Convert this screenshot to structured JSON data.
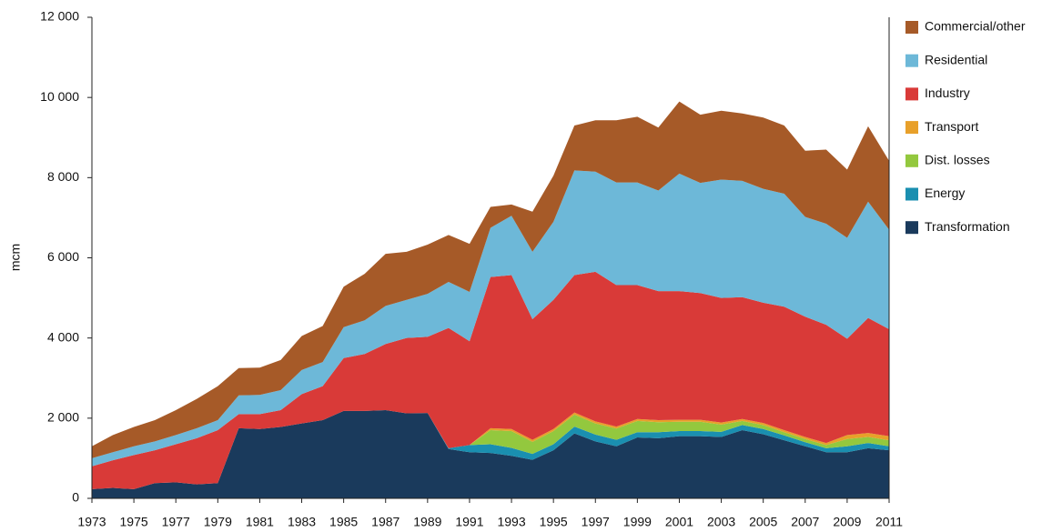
{
  "chart_data": {
    "type": "stacked-area",
    "y_label": "mcm",
    "x": [
      1973,
      1974,
      1975,
      1976,
      1977,
      1978,
      1979,
      1980,
      1981,
      1982,
      1983,
      1984,
      1985,
      1986,
      1987,
      1988,
      1989,
      1990,
      1991,
      1992,
      1993,
      1994,
      1995,
      1996,
      1997,
      1998,
      1999,
      2000,
      2001,
      2002,
      2003,
      2004,
      2005,
      2006,
      2007,
      2008,
      2009,
      2010,
      2011
    ],
    "xlim": [
      1973,
      2011
    ],
    "xticks": [
      1973,
      1975,
      1977,
      1979,
      1981,
      1983,
      1985,
      1987,
      1989,
      1991,
      1993,
      1995,
      1997,
      1999,
      2001,
      2003,
      2005,
      2007,
      2009,
      2011
    ],
    "ylim": [
      0,
      12000
    ],
    "yticks": [
      0,
      {
        "value": 2000,
        "label": "2 000"
      },
      {
        "value": 4000,
        "label": "4 000"
      },
      {
        "value": 6000,
        "label": "6 000"
      },
      {
        "value": 8000,
        "label": "8 000"
      },
      {
        "value": 10000,
        "label": "10 000"
      },
      {
        "value": 12000,
        "label": "12 000"
      }
    ],
    "series": [
      {
        "name": "Commercial/other",
        "color": "#a65a28",
        "values": [
          300,
          430,
          480,
          530,
          620,
          730,
          850,
          680,
          680,
          750,
          850,
          900,
          1010,
          1160,
          1300,
          1200,
          1230,
          1170,
          1200,
          520,
          280,
          1000,
          1150,
          1120,
          1280,
          1550,
          1640,
          1570,
          1800,
          1700,
          1720,
          1680,
          1780,
          1700,
          1650,
          1850,
          1700,
          1880,
          1720
        ]
      },
      {
        "name": "Residential",
        "color": "#6db8d8",
        "values": [
          200,
          200,
          220,
          220,
          230,
          250,
          250,
          470,
          480,
          500,
          600,
          600,
          770,
          840,
          950,
          950,
          1070,
          1150,
          1230,
          1230,
          1480,
          1680,
          1950,
          2610,
          2500,
          2560,
          2560,
          2510,
          2930,
          2750,
          2950,
          2900,
          2840,
          2820,
          2490,
          2520,
          2520,
          2900,
          2480
        ]
      },
      {
        "name": "Industry",
        "color": "#d93a38",
        "values": [
          570,
          690,
          850,
          820,
          950,
          1150,
          1320,
          350,
          370,
          420,
          730,
          850,
          1320,
          1420,
          1650,
          1880,
          1900,
          3000,
          2590,
          3770,
          3840,
          3010,
          3220,
          3430,
          3730,
          3530,
          3340,
          3220,
          3210,
          3160,
          3110,
          3040,
          3000,
          3080,
          3000,
          2950,
          2400,
          2870,
          2670
        ]
      },
      {
        "name": "Transport",
        "color": "#e8a02a",
        "values": [
          0,
          0,
          0,
          0,
          0,
          0,
          0,
          0,
          0,
          0,
          0,
          0,
          0,
          0,
          0,
          0,
          0,
          0,
          0,
          50,
          50,
          50,
          50,
          50,
          50,
          50,
          50,
          50,
          50,
          50,
          50,
          50,
          50,
          50,
          50,
          50,
          100,
          100,
          100
        ]
      },
      {
        "name": "Dist. losses",
        "color": "#93c83e",
        "values": [
          0,
          0,
          0,
          0,
          0,
          0,
          0,
          0,
          0,
          0,
          0,
          0,
          0,
          0,
          0,
          0,
          0,
          0,
          0,
          350,
          420,
          300,
          330,
          300,
          280,
          280,
          280,
          250,
          230,
          230,
          180,
          100,
          100,
          80,
          80,
          80,
          180,
          150,
          150
        ]
      },
      {
        "name": "Energy",
        "color": "#1a8fb0",
        "values": [
          0,
          0,
          0,
          0,
          0,
          0,
          0,
          0,
          0,
          0,
          0,
          0,
          0,
          0,
          0,
          0,
          0,
          20,
          180,
          220,
          200,
          150,
          150,
          170,
          170,
          160,
          130,
          150,
          130,
          130,
          130,
          130,
          130,
          120,
          100,
          100,
          150,
          130,
          100
        ]
      },
      {
        "name": "Transformation",
        "color": "#1a3a5c",
        "values": [
          230,
          260,
          230,
          380,
          400,
          350,
          380,
          1750,
          1730,
          1780,
          1870,
          1950,
          2180,
          2180,
          2200,
          2120,
          2130,
          1230,
          1150,
          1130,
          1060,
          960,
          1200,
          1620,
          1420,
          1300,
          1520,
          1500,
          1550,
          1550,
          1530,
          1700,
          1600,
          1450,
          1300,
          1150,
          1150,
          1250,
          1200
        ]
      }
    ]
  }
}
